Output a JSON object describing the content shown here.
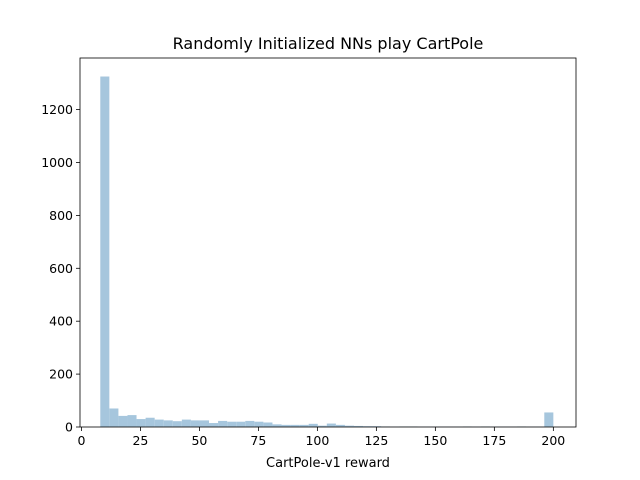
{
  "chart_data": {
    "type": "bar",
    "title": "Randomly Initialized NNs play CartPole",
    "xlabel": "CartPole-v1 reward",
    "ylabel": "",
    "xlim": [
      -0.6,
      209.6
    ],
    "ylim": [
      0,
      1395
    ],
    "xticks": [
      0,
      25,
      50,
      75,
      100,
      125,
      150,
      175,
      200
    ],
    "yticks": [
      0,
      200,
      400,
      600,
      800,
      1000,
      1200
    ],
    "grid": false,
    "bar_color": "#a6c6dd",
    "bin_edges": [
      8,
      11.84,
      15.68,
      19.52,
      23.36,
      27.2,
      31.04,
      34.88,
      38.72,
      42.56,
      46.4,
      50.24,
      54.08,
      57.92,
      61.76,
      65.6,
      69.44,
      73.28,
      77.12,
      80.96,
      84.8,
      88.64,
      92.48,
      96.32,
      100.16,
      104,
      107.84,
      111.68,
      115.52,
      119.36,
      123.2,
      127.04,
      130.88,
      134.72,
      138.56,
      142.4,
      146.24,
      150.08,
      153.92,
      157.76,
      161.6,
      165.44,
      169.28,
      173.12,
      176.96,
      180.8,
      184.64,
      188.48,
      192.32,
      196.16,
      200
    ],
    "values": [
      1325,
      70,
      42,
      45,
      30,
      35,
      28,
      25,
      22,
      28,
      25,
      25,
      15,
      23,
      20,
      20,
      23,
      20,
      17,
      10,
      8,
      8,
      8,
      12,
      5,
      13,
      8,
      5,
      4,
      3,
      3,
      2,
      1,
      2,
      2,
      1,
      1,
      1,
      1,
      1,
      2,
      1,
      2,
      1,
      1,
      1,
      2,
      1,
      1,
      55
    ]
  }
}
